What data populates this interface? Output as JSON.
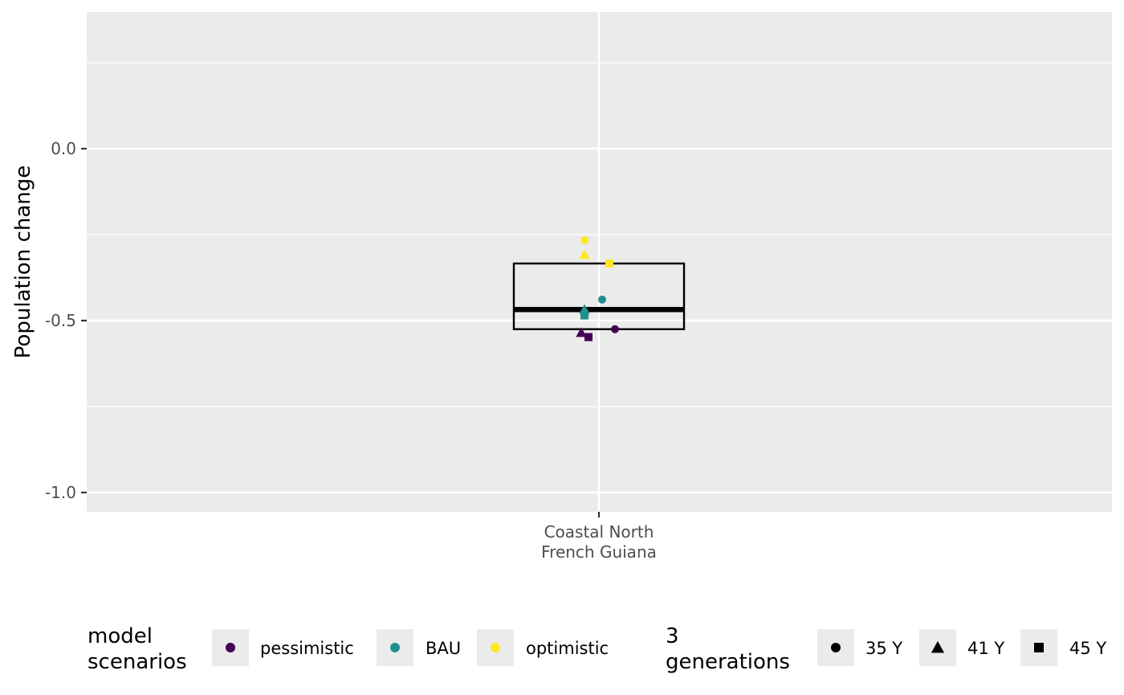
{
  "chart_data": {
    "type": "box",
    "ylabel": "Population change",
    "ylim": [
      -1.06,
      0.4
    ],
    "yticks": [
      0.0,
      -0.5,
      -1.0
    ],
    "ytick_labels": [
      "0.0",
      "-0.5",
      "-1.0"
    ],
    "categories": [
      [
        "Coastal North",
        "French Guiana"
      ]
    ],
    "grid": true,
    "box": {
      "category": 0,
      "q1": -0.525,
      "median": -0.468,
      "q3": -0.334
    },
    "points": [
      {
        "scenario": "optimistic",
        "generation": "35 Y",
        "y": -0.266
      },
      {
        "scenario": "optimistic",
        "generation": "41 Y",
        "y": -0.308
      },
      {
        "scenario": "optimistic",
        "generation": "45 Y",
        "y": -0.334
      },
      {
        "scenario": "BAU",
        "generation": "35 Y",
        "y": -0.439
      },
      {
        "scenario": "BAU",
        "generation": "41 Y",
        "y": -0.468
      },
      {
        "scenario": "BAU",
        "generation": "45 Y",
        "y": -0.485
      },
      {
        "scenario": "pessimistic",
        "generation": "35 Y",
        "y": -0.525
      },
      {
        "scenario": "pessimistic",
        "generation": "41 Y",
        "y": -0.535
      },
      {
        "scenario": "pessimistic",
        "generation": "45 Y",
        "y": -0.548
      }
    ],
    "legend_placement": "bottom",
    "legends": [
      {
        "title": [
          "model",
          "scenarios"
        ],
        "items": [
          {
            "label": "pessimistic",
            "color": "#440154",
            "shape": "circle"
          },
          {
            "label": "BAU",
            "color": "#21908C",
            "shape": "circle"
          },
          {
            "label": "optimistic",
            "color": "#FDE725",
            "shape": "circle"
          }
        ]
      },
      {
        "title": [
          "3",
          "generations"
        ],
        "items": [
          {
            "label": "35 Y",
            "color": "#000000",
            "shape": "circle"
          },
          {
            "label": "41 Y",
            "color": "#000000",
            "shape": "triangle"
          },
          {
            "label": "45 Y",
            "color": "#000000",
            "shape": "square"
          }
        ]
      }
    ],
    "colors": {
      "panel": "#EBEBEB",
      "grid": "#FFFFFF",
      "box": "#000000"
    }
  }
}
